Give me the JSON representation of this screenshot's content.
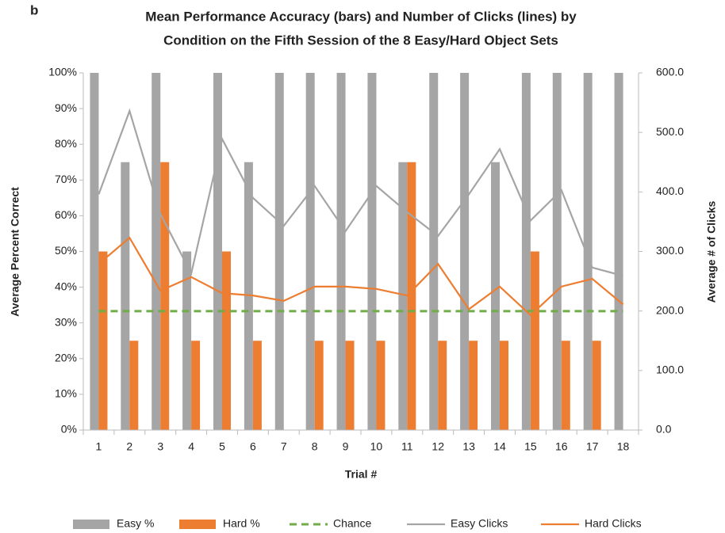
{
  "chart_data": {
    "type": "bar-line",
    "panel_label": "b",
    "title": [
      "Mean Performance Accuracy (bars) and Number of Clicks (lines) by",
      "Condition on the Fifth Session of the 8 Easy/Hard Object Sets"
    ],
    "x_label": "Trial #",
    "y_label": "Average Percent Correct",
    "y2_label": "Average # of Clicks",
    "categories": [
      "1",
      "2",
      "3",
      "4",
      "5",
      "6",
      "7",
      "8",
      "9",
      "10",
      "11",
      "12",
      "13",
      "14",
      "15",
      "16",
      "17",
      "18"
    ],
    "ylim": [
      0,
      100
    ],
    "yticks": [
      {
        "value": 0,
        "label": "0%"
      },
      {
        "value": 10,
        "label": "10%"
      },
      {
        "value": 20,
        "label": "20%"
      },
      {
        "value": 30,
        "label": "30%"
      },
      {
        "value": 40,
        "label": "40%"
      },
      {
        "value": 50,
        "label": "50%"
      },
      {
        "value": 60,
        "label": "60%"
      },
      {
        "value": 70,
        "label": "70%"
      },
      {
        "value": 80,
        "label": "80%"
      },
      {
        "value": 90,
        "label": "90%"
      },
      {
        "value": 100,
        "label": "100%"
      }
    ],
    "y2lim": [
      0,
      600
    ],
    "y2ticks": [
      {
        "value": 0,
        "label": "0.0"
      },
      {
        "value": 100,
        "label": "100.0"
      },
      {
        "value": 200,
        "label": "200.0"
      },
      {
        "value": 300,
        "label": "300.0"
      },
      {
        "value": 400,
        "label": "400.0"
      },
      {
        "value": 500,
        "label": "500.0"
      },
      {
        "value": 600,
        "label": "600.0"
      }
    ],
    "grid": false,
    "legend": "bottom",
    "series": [
      {
        "name": "Easy %",
        "kind": "bar",
        "color": "#a5a5a5",
        "values": [
          100,
          75,
          100,
          50,
          100,
          75,
          100,
          100,
          100,
          100,
          75,
          100,
          100,
          75,
          100,
          100,
          100,
          100
        ]
      },
      {
        "name": "Hard %",
        "kind": "bar",
        "color": "#ed7d31",
        "values": [
          50,
          25,
          75,
          25,
          50,
          25,
          0,
          25,
          25,
          25,
          75,
          25,
          25,
          25,
          50,
          25,
          25,
          0
        ]
      },
      {
        "name": "Chance",
        "kind": "line",
        "dashed": true,
        "color": "#70ad47",
        "values": [
          33.3,
          33.3,
          33.3,
          33.3,
          33.3,
          33.3,
          33.3,
          33.3,
          33.3,
          33.3,
          33.3,
          33.3,
          33.3,
          33.3,
          33.3,
          33.3,
          33.3,
          33.3
        ]
      },
      {
        "name": "Easy Clicks",
        "kind": "line",
        "axis": "y2",
        "color": "#a5a5a5",
        "values": [
          396,
          536,
          363,
          263,
          489,
          390,
          343,
          410,
          334,
          410,
          366,
          326,
          396,
          472,
          352,
          403,
          273,
          259
        ]
      },
      {
        "name": "Hard Clicks",
        "kind": "line",
        "axis": "y2",
        "color": "#ed7d31",
        "values": [
          279,
          323,
          234,
          257,
          230,
          226,
          217,
          241,
          241,
          237,
          226,
          279,
          203,
          241,
          193,
          241,
          254,
          211
        ]
      }
    ]
  }
}
